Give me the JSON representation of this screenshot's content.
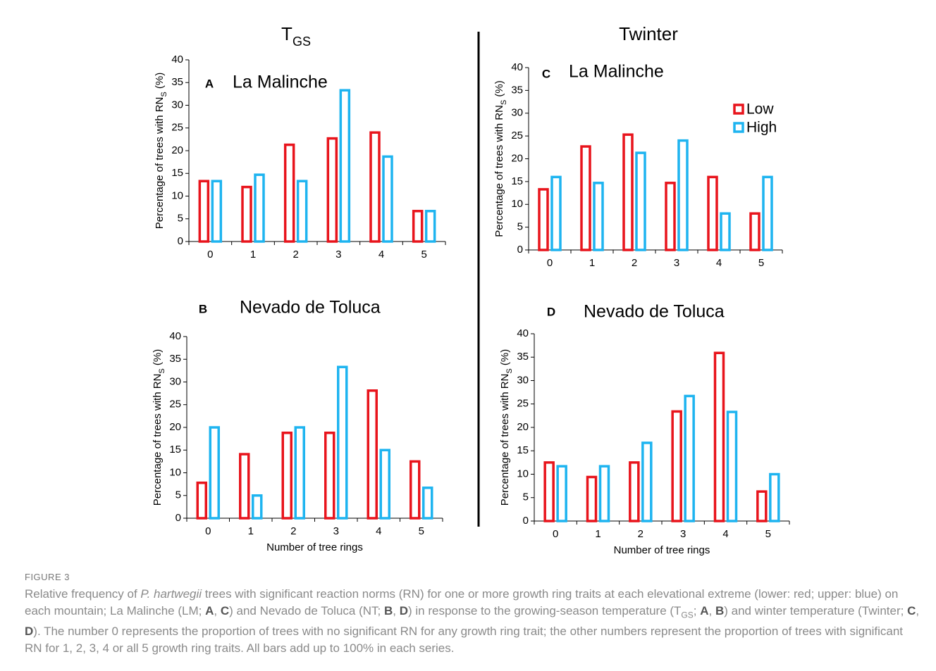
{
  "column_titles": [
    [
      {
        "text": "T"
      },
      {
        "text": "GS",
        "style": "sub"
      }
    ],
    [
      {
        "text": "Twinter"
      }
    ]
  ],
  "chart_data": [
    {
      "type": "bar",
      "panel": "A",
      "title": "La Malinche",
      "ylabel": [
        {
          "text": "Percentage of trees with RN"
        },
        {
          "text": "S",
          "style": "sub"
        },
        {
          "text": " (%)"
        }
      ],
      "categories": [
        "0",
        "1",
        "2",
        "3",
        "4",
        "5"
      ],
      "series": [
        {
          "name": "Low",
          "color": "#e8141c",
          "values": [
            13.3,
            12,
            21.3,
            22.7,
            24,
            6.7
          ]
        },
        {
          "name": "High",
          "color": "#1eb4f0",
          "values": [
            13.3,
            14.7,
            13.3,
            33.3,
            18.7,
            6.7
          ]
        }
      ],
      "ylim": [
        0,
        40
      ],
      "yticks": [
        0,
        5,
        10,
        15,
        20,
        25,
        30,
        35,
        40
      ]
    },
    {
      "type": "bar",
      "panel": "B",
      "title": "Nevado de Toluca",
      "ylabel": [
        {
          "text": "Percentage of trees with RN"
        },
        {
          "text": "S",
          "style": "sub"
        },
        {
          "text": " (%)"
        }
      ],
      "xlabel": "Number of tree rings",
      "categories": [
        "0",
        "1",
        "2",
        "3",
        "4",
        "5"
      ],
      "series": [
        {
          "name": "Low",
          "color": "#e8141c",
          "values": [
            7.8,
            14.1,
            18.8,
            18.8,
            28.1,
            12.5
          ]
        },
        {
          "name": "High",
          "color": "#1eb4f0",
          "values": [
            20,
            5,
            20,
            33.3,
            15,
            6.7
          ]
        }
      ],
      "ylim": [
        0,
        40
      ],
      "yticks": [
        0,
        5,
        10,
        15,
        20,
        25,
        30,
        35,
        40
      ]
    },
    {
      "type": "bar",
      "panel": "C",
      "title": "La Malinche",
      "ylabel": [
        {
          "text": "Percentage of trees with RN"
        },
        {
          "text": "S",
          "style": "sub"
        },
        {
          "text": " (%)"
        }
      ],
      "categories": [
        "0",
        "1",
        "2",
        "3",
        "4",
        "5"
      ],
      "series": [
        {
          "name": "Low",
          "color": "#e8141c",
          "values": [
            13.3,
            22.7,
            25.3,
            14.7,
            16,
            8
          ]
        },
        {
          "name": "High",
          "color": "#1eb4f0",
          "values": [
            16,
            14.7,
            21.3,
            24,
            8,
            16
          ]
        }
      ],
      "ylim": [
        0,
        40
      ],
      "yticks": [
        0,
        5,
        10,
        15,
        20,
        25,
        30,
        35,
        40
      ],
      "legend": "upper right"
    },
    {
      "type": "bar",
      "panel": "D",
      "title": "Nevado de Toluca",
      "ylabel": [
        {
          "text": "Percentage of trees with RN"
        },
        {
          "text": "S",
          "style": "sub"
        },
        {
          "text": " (%)"
        }
      ],
      "xlabel": "Number of tree rings",
      "categories": [
        "0",
        "1",
        "2",
        "3",
        "4",
        "5"
      ],
      "series": [
        {
          "name": "Low",
          "color": "#e8141c",
          "values": [
            12.5,
            9.4,
            12.5,
            23.4,
            35.9,
            6.3
          ]
        },
        {
          "name": "High",
          "color": "#1eb4f0",
          "values": [
            11.7,
            11.7,
            16.7,
            26.7,
            23.3,
            10
          ]
        }
      ],
      "ylim": [
        0,
        40
      ],
      "yticks": [
        0,
        5,
        10,
        15,
        20,
        25,
        30,
        35,
        40
      ]
    }
  ],
  "figure_label": "FIGURE 3",
  "caption": [
    {
      "text": "Relative frequency of "
    },
    {
      "text": "P. hartwegii",
      "style": "italic"
    },
    {
      "text": " trees with significant reaction norms (RN) for one or more growth ring traits at each elevational extreme (lower: red; upper: blue) on each mountain; La Malinche (LM; "
    },
    {
      "text": "A",
      "style": "bold"
    },
    {
      "text": ", "
    },
    {
      "text": "C",
      "style": "bold"
    },
    {
      "text": ") and Nevado de Toluca (NT; "
    },
    {
      "text": "B",
      "style": "bold"
    },
    {
      "text": ", "
    },
    {
      "text": "D",
      "style": "bold"
    },
    {
      "text": ") in response to the growing-season temperature (T"
    },
    {
      "text": "GS",
      "style": "sub"
    },
    {
      "text": "; "
    },
    {
      "text": "A",
      "style": "bold"
    },
    {
      "text": ", "
    },
    {
      "text": "B",
      "style": "bold"
    },
    {
      "text": ") and winter temperature (Twinter; "
    },
    {
      "text": "C",
      "style": "bold"
    },
    {
      "text": ", "
    },
    {
      "text": "D",
      "style": "bold"
    },
    {
      "text": "). The number 0 represents the proportion of trees with no significant RN for any growth ring trait; the other numbers represent the proportion of trees with significant RN for 1, 2, 3, 4 or all 5 growth ring traits. All bars add up to 100% in each series."
    }
  ]
}
